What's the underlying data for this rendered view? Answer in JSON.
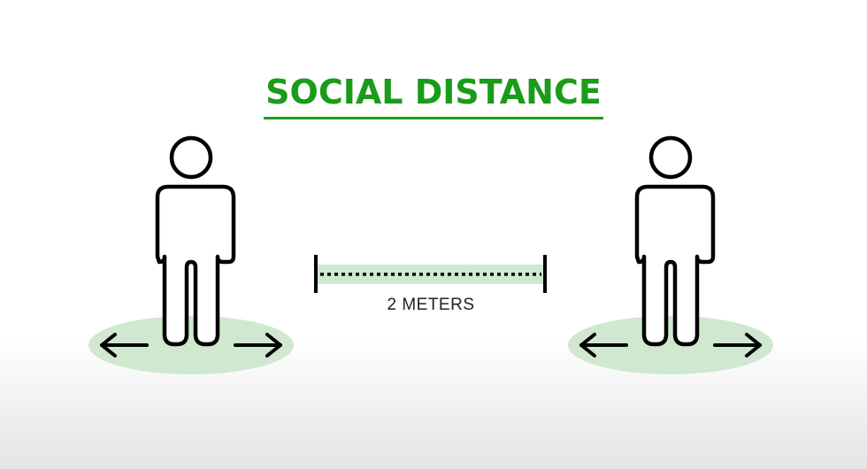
{
  "title": "SOCIAL DISTANCE",
  "distance_label": "2 METERS",
  "colors": {
    "title": "#1a9c1a",
    "zone": "#cfe8cf",
    "outline": "#000000",
    "label": "#222222"
  },
  "icons": {
    "left_person": "person-icon",
    "right_person": "person-icon",
    "arrows": "arrow-icon"
  }
}
